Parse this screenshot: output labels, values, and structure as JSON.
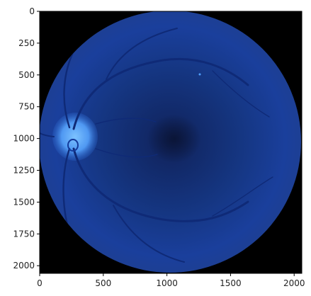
{
  "figure": {
    "image_description_type": "fundus-photograph",
    "colors": {
      "background": "#000000",
      "fundus_dark": "#0e1d4f",
      "fundus_mid": "#163a92",
      "fundus_edge": "#1a3f9c",
      "optic_disc": "#59a8ff",
      "vessel": "#0f2a77",
      "macula": "#0b163d"
    }
  },
  "axes": {
    "x": {
      "range": [
        0,
        2060
      ],
      "ticks": [
        {
          "value": 0,
          "label": "0"
        },
        {
          "value": 500,
          "label": "500"
        },
        {
          "value": 1000,
          "label": "1000"
        },
        {
          "value": 1500,
          "label": "1500"
        },
        {
          "value": 2000,
          "label": "2000"
        }
      ]
    },
    "y": {
      "range": [
        0,
        2060
      ],
      "inverted": true,
      "ticks": [
        {
          "value": 0,
          "label": "0"
        },
        {
          "value": 250,
          "label": "250"
        },
        {
          "value": 500,
          "label": "500"
        },
        {
          "value": 750,
          "label": "750"
        },
        {
          "value": 1000,
          "label": "1000"
        },
        {
          "value": 1250,
          "label": "1250"
        },
        {
          "value": 1500,
          "label": "1500"
        },
        {
          "value": 1750,
          "label": "1750"
        },
        {
          "value": 2000,
          "label": "2000"
        }
      ]
    }
  }
}
